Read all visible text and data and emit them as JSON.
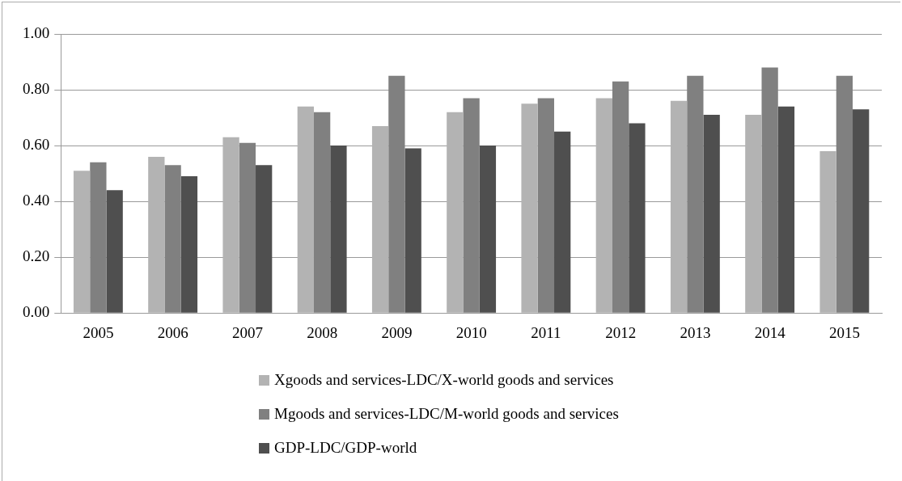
{
  "chart_data": {
    "type": "bar",
    "categories": [
      "2005",
      "2006",
      "2007",
      "2008",
      "2009",
      "2010",
      "2011",
      "2012",
      "2013",
      "2014",
      "2015"
    ],
    "series": [
      {
        "name": "Xgoods and services-LDC/X-world goods and services",
        "color": "#b3b3b3",
        "values": [
          0.51,
          0.56,
          0.63,
          0.74,
          0.67,
          0.72,
          0.75,
          0.77,
          0.76,
          0.71,
          0.58
        ]
      },
      {
        "name": "Mgoods and services-LDC/M-world goods and services",
        "color": "#808080",
        "values": [
          0.54,
          0.53,
          0.61,
          0.72,
          0.85,
          0.77,
          0.77,
          0.83,
          0.85,
          0.88,
          0.85
        ]
      },
      {
        "name": "GDP-LDC/GDP-world",
        "color": "#4f4f4f",
        "values": [
          0.44,
          0.49,
          0.53,
          0.6,
          0.59,
          0.6,
          0.65,
          0.68,
          0.71,
          0.74,
          0.73
        ]
      }
    ],
    "ylim": [
      0,
      1
    ],
    "yticks": [
      {
        "value": 0,
        "label": "0.00"
      },
      {
        "value": 0.2,
        "label": "0.20"
      },
      {
        "value": 0.4,
        "label": "0.40"
      },
      {
        "value": 0.6,
        "label": "0.60"
      },
      {
        "value": 0.8,
        "label": "0.80"
      },
      {
        "value": 1,
        "label": "1.00"
      }
    ],
    "grid": "y",
    "legend": "bottom"
  }
}
